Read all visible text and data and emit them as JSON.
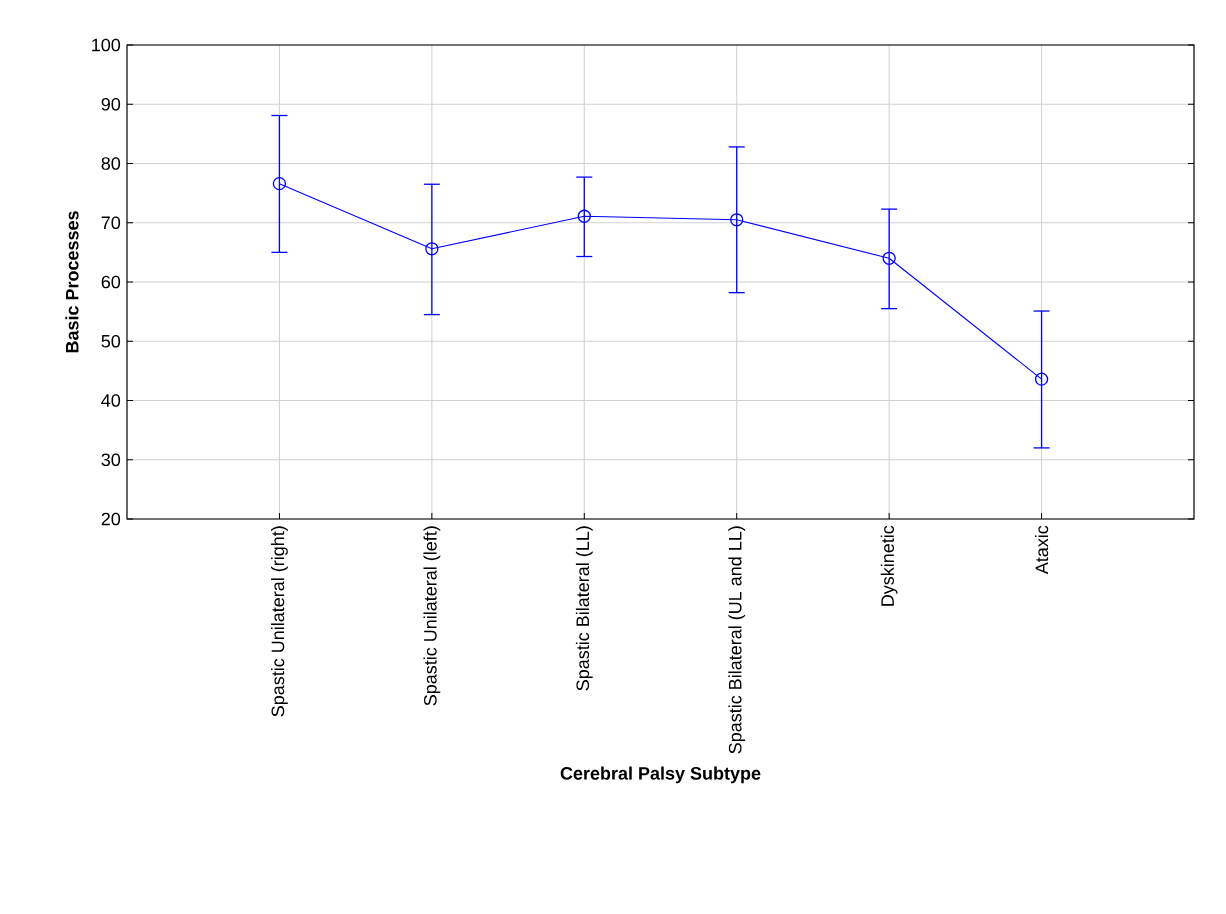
{
  "chart_data": {
    "type": "line",
    "xlabel": "Cerebral Palsy Subtype",
    "ylabel": "Basic Processes",
    "categories": [
      "Spastic Unilateral (right)",
      "Spastic Unilateral (left)",
      "Spastic Bilateral (LL)",
      "Spastic Bilateral (UL and LL)",
      "Dyskinetic",
      "Ataxic"
    ],
    "series": [
      {
        "color": "#0000ff",
        "values": [
          76.6,
          65.6,
          71.1,
          70.5,
          64.0,
          43.6
        ],
        "errors": [
          [
            65.0,
            88.1
          ],
          [
            54.5,
            76.5
          ],
          [
            64.3,
            77.7
          ],
          [
            58.2,
            82.8
          ],
          [
            55.5,
            72.3
          ],
          [
            32.0,
            55.1
          ]
        ]
      }
    ],
    "ylim": [
      20,
      100
    ],
    "yticks": [
      20,
      30,
      40,
      50,
      60,
      70,
      80,
      90,
      100
    ],
    "grid": true,
    "marker": "circle",
    "line_style": "solid"
  }
}
